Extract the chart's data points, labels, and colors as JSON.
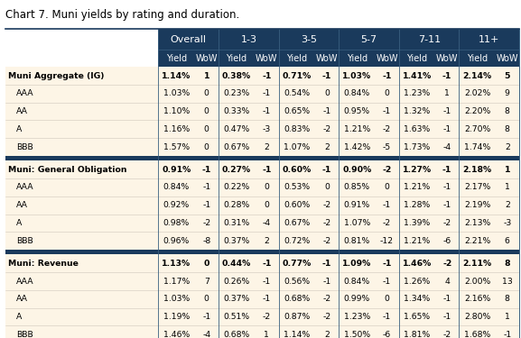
{
  "title": "Chart 7. Muni yields by rating and duration.",
  "header_bg": "#1a3a5c",
  "header_text": "#ffffff",
  "row_bg": "#fdf5e6",
  "separator_dark": "#1a3a5c",
  "separator_light": "#c0c0c0",
  "col_groups": [
    "Overall",
    "1-3",
    "3-5",
    "5-7",
    "7-11",
    "11+"
  ],
  "col_labels": [
    "Yield",
    "WoW",
    "Yield",
    "WoW",
    "Yield",
    "WoW",
    "Yield",
    "WoW",
    "Yield",
    "WoW",
    "Yield",
    "WoW"
  ],
  "sections": [
    {
      "rows": [
        {
          "label": "Muni Aggregate (IG)",
          "bold": true,
          "data": [
            "1.14%",
            "1",
            "0.38%",
            "-1",
            "0.71%",
            "-1",
            "1.03%",
            "-1",
            "1.41%",
            "-1",
            "2.14%",
            "5"
          ]
        },
        {
          "label": "AAA",
          "bold": false,
          "data": [
            "1.03%",
            "0",
            "0.23%",
            "-1",
            "0.54%",
            "0",
            "0.84%",
            "0",
            "1.23%",
            "1",
            "2.02%",
            "9"
          ]
        },
        {
          "label": "AA",
          "bold": false,
          "data": [
            "1.10%",
            "0",
            "0.33%",
            "-1",
            "0.65%",
            "-1",
            "0.95%",
            "-1",
            "1.32%",
            "-1",
            "2.20%",
            "8"
          ]
        },
        {
          "label": "A",
          "bold": false,
          "data": [
            "1.16%",
            "0",
            "0.47%",
            "-3",
            "0.83%",
            "-2",
            "1.21%",
            "-2",
            "1.63%",
            "-1",
            "2.70%",
            "8"
          ]
        },
        {
          "label": "BBB",
          "bold": false,
          "data": [
            "1.57%",
            "0",
            "0.67%",
            "2",
            "1.07%",
            "2",
            "1.42%",
            "-5",
            "1.73%",
            "-4",
            "1.74%",
            "2"
          ]
        }
      ]
    },
    {
      "rows": [
        {
          "label": "Muni: General Obligation",
          "bold": true,
          "data": [
            "0.91%",
            "-1",
            "0.27%",
            "-1",
            "0.60%",
            "-1",
            "0.90%",
            "-2",
            "1.27%",
            "-1",
            "2.18%",
            "1"
          ]
        },
        {
          "label": "AAA",
          "bold": false,
          "data": [
            "0.84%",
            "-1",
            "0.22%",
            "0",
            "0.53%",
            "0",
            "0.85%",
            "0",
            "1.21%",
            "-1",
            "2.17%",
            "1"
          ]
        },
        {
          "label": "AA",
          "bold": false,
          "data": [
            "0.92%",
            "-1",
            "0.28%",
            "0",
            "0.60%",
            "-2",
            "0.91%",
            "-1",
            "1.28%",
            "-1",
            "2.19%",
            "2"
          ]
        },
        {
          "label": "A",
          "bold": false,
          "data": [
            "0.98%",
            "-2",
            "0.31%",
            "-4",
            "0.67%",
            "-2",
            "1.07%",
            "-2",
            "1.39%",
            "-2",
            "2.13%",
            "-3"
          ]
        },
        {
          "label": "BBB",
          "bold": false,
          "data": [
            "0.96%",
            "-8",
            "0.37%",
            "2",
            "0.72%",
            "-2",
            "0.81%",
            "-12",
            "1.21%",
            "-6",
            "2.21%",
            "6"
          ]
        }
      ]
    },
    {
      "rows": [
        {
          "label": "Muni: Revenue",
          "bold": true,
          "data": [
            "1.13%",
            "0",
            "0.44%",
            "-1",
            "0.77%",
            "-1",
            "1.09%",
            "-1",
            "1.46%",
            "-2",
            "2.11%",
            "8"
          ]
        },
        {
          "label": "AAA",
          "bold": false,
          "data": [
            "1.17%",
            "7",
            "0.26%",
            "-1",
            "0.56%",
            "-1",
            "0.84%",
            "-1",
            "1.26%",
            "4",
            "2.00%",
            "13"
          ]
        },
        {
          "label": "AA",
          "bold": false,
          "data": [
            "1.03%",
            "0",
            "0.37%",
            "-1",
            "0.68%",
            "-2",
            "0.99%",
            "0",
            "1.34%",
            "-1",
            "2.16%",
            "8"
          ]
        },
        {
          "label": "A",
          "bold": false,
          "data": [
            "1.19%",
            "-1",
            "0.51%",
            "-2",
            "0.87%",
            "-2",
            "1.23%",
            "-1",
            "1.65%",
            "-1",
            "2.80%",
            "1"
          ]
        },
        {
          "label": "BBB",
          "bold": false,
          "data": [
            "1.46%",
            "-4",
            "0.68%",
            "1",
            "1.14%",
            "2",
            "1.50%",
            "-6",
            "1.81%",
            "-2",
            "1.68%",
            "-1"
          ]
        }
      ]
    }
  ]
}
